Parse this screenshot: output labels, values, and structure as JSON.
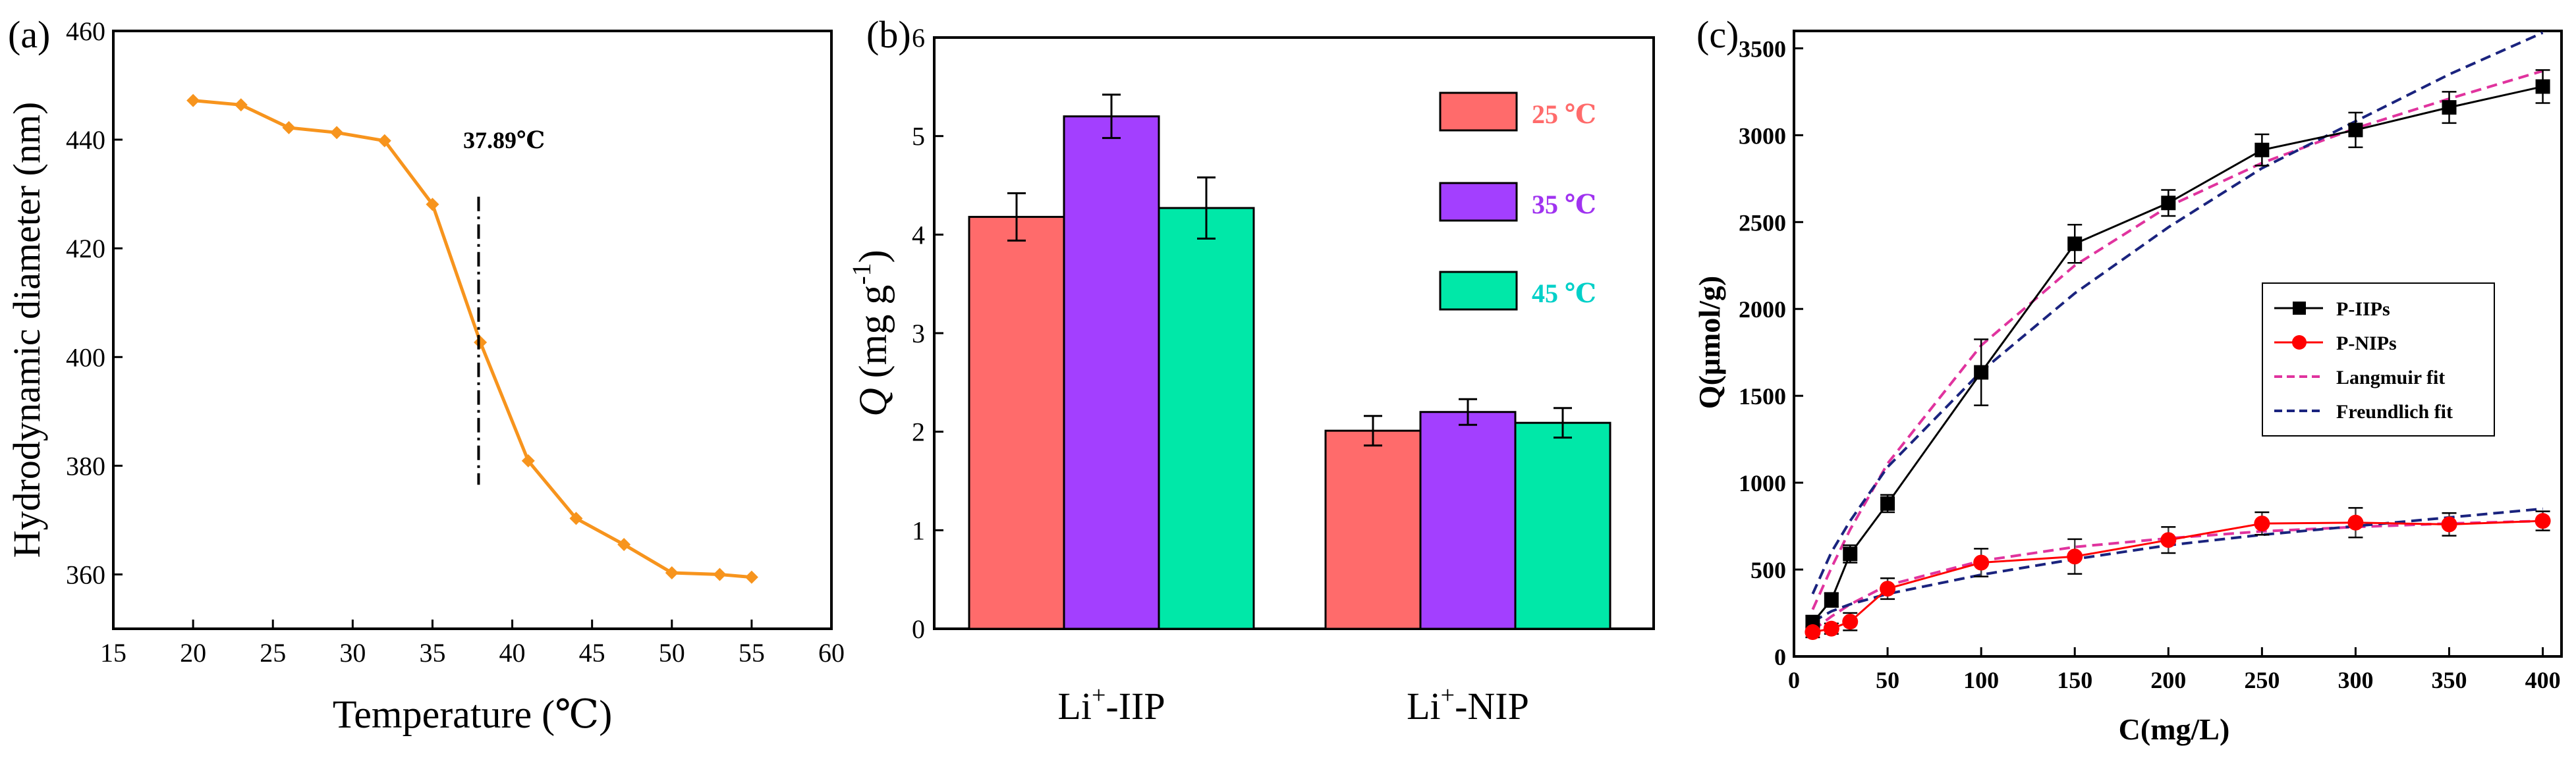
{
  "panels": {
    "a": {
      "label": "(a)"
    },
    "b": {
      "label": "(b)"
    },
    "c": {
      "label": "(c)"
    }
  },
  "chart_data": [
    {
      "id": "a",
      "type": "line",
      "xlabel": "Temperature (℃)",
      "ylabel": "Hydrodynamic diameter (nm)",
      "xlim": [
        15,
        60
      ],
      "ylim": [
        350,
        460
      ],
      "xticks": [
        15,
        20,
        25,
        30,
        35,
        40,
        45,
        50,
        55,
        60
      ],
      "yticks": [
        360,
        380,
        400,
        420,
        440,
        460
      ],
      "grid": false,
      "color": "#F7941D",
      "x": [
        20,
        23,
        26,
        29,
        32,
        35,
        38,
        41,
        44,
        47,
        50,
        53,
        55
      ],
      "y": [
        447.2,
        446.4,
        442.2,
        441.3,
        439.8,
        428.1,
        402.7,
        380.9,
        370.3,
        365.5,
        360.3,
        360.0,
        359.5
      ],
      "marker": "diamond",
      "annotation": {
        "text": "37.89℃",
        "x": 37.89,
        "vline": [
          376.5,
          429.5
        ]
      }
    },
    {
      "id": "b",
      "type": "bar",
      "ylabel_italic": "Q",
      "ylabel_rest": " (mg g",
      "ylabel_sup": "-1",
      "ylabel_close": ")",
      "ylim": [
        0,
        6
      ],
      "yticks": [
        0,
        1,
        2,
        3,
        4,
        5,
        6
      ],
      "grid": false,
      "categories": [
        {
          "base": "Li",
          "sup": "+",
          "rest": "-IIP"
        },
        {
          "base": "Li",
          "sup": "+",
          "rest": "-NIP"
        }
      ],
      "series": [
        {
          "name": "25 ℃",
          "color": "#FF6B6B",
          "label_color": "#FF6B6B",
          "values": [
            4.18,
            2.01
          ],
          "errors": [
            0.24,
            0.15
          ]
        },
        {
          "name": "35 ℃",
          "color": "#A33FFF",
          "label_color": "#A033F0",
          "values": [
            5.2,
            2.2
          ],
          "errors": [
            0.22,
            0.13
          ]
        },
        {
          "name": "45 ℃",
          "color": "#00E8A8",
          "label_color": "#00D0C8",
          "values": [
            4.27,
            2.09
          ],
          "errors": [
            0.31,
            0.15
          ]
        }
      ],
      "legend_position": "top-right"
    },
    {
      "id": "c",
      "type": "line",
      "xlabel": "C(mg/L)",
      "ylabel": "Q(μmol/g)",
      "xlim": [
        0,
        410
      ],
      "ylim": [
        0,
        3600
      ],
      "xticks": [
        0,
        50,
        100,
        150,
        200,
        250,
        300,
        350,
        400
      ],
      "yticks": [
        0,
        500,
        1000,
        1500,
        2000,
        2500,
        3000,
        3500
      ],
      "grid": false,
      "legend_position": "center-right",
      "series": [
        {
          "name": "P-IIPs",
          "color": "#000000",
          "marker": "square",
          "style": "solid",
          "x": [
            10,
            20,
            30,
            50,
            100,
            150,
            200,
            250,
            300,
            350,
            400
          ],
          "y": [
            195,
            325,
            590,
            880,
            1635,
            2375,
            2610,
            2915,
            3030,
            3160,
            3280
          ],
          "errors": [
            40,
            40,
            50,
            50,
            190,
            110,
            75,
            90,
            100,
            90,
            95
          ]
        },
        {
          "name": "P-NIPs",
          "color": "#FF0000",
          "marker": "circle",
          "style": "solid",
          "x": [
            10,
            20,
            30,
            50,
            100,
            150,
            200,
            250,
            300,
            350,
            400
          ],
          "y": [
            140,
            160,
            200,
            390,
            540,
            575,
            670,
            765,
            770,
            760,
            780
          ],
          "errors": [
            30,
            30,
            50,
            60,
            80,
            100,
            75,
            65,
            85,
            65,
            55
          ]
        },
        {
          "name": "Langmuir fit",
          "color": "#E0339E",
          "style": "dashed",
          "x": [
            10,
            20,
            30,
            50,
            100,
            150,
            200,
            250,
            300,
            350,
            400
          ],
          "y": [
            270,
            510,
            730,
            1110,
            1790,
            2250,
            2590,
            2840,
            3040,
            3210,
            3370
          ]
        },
        {
          "name": "Freundlich fit",
          "color": "#1A237E",
          "style": "dashed",
          "x": [
            10,
            20,
            30,
            50,
            100,
            150,
            200,
            250,
            300,
            350,
            400
          ],
          "y": [
            360,
            600,
            780,
            1090,
            1640,
            2090,
            2470,
            2810,
            3080,
            3350,
            3590
          ]
        },
        {
          "name": "",
          "legend": false,
          "color": "#E0339E",
          "style": "dashed",
          "x": [
            10,
            20,
            30,
            50,
            100,
            150,
            200,
            250,
            300,
            350,
            400
          ],
          "y": [
            150,
            230,
            300,
            410,
            550,
            630,
            680,
            720,
            745,
            765,
            780
          ]
        },
        {
          "name": "",
          "legend": false,
          "color": "#1A237E",
          "style": "dashed",
          "x": [
            10,
            20,
            30,
            50,
            100,
            150,
            200,
            250,
            300,
            350,
            400
          ],
          "y": [
            200,
            260,
            300,
            360,
            470,
            560,
            640,
            700,
            750,
            800,
            850
          ]
        }
      ]
    }
  ]
}
